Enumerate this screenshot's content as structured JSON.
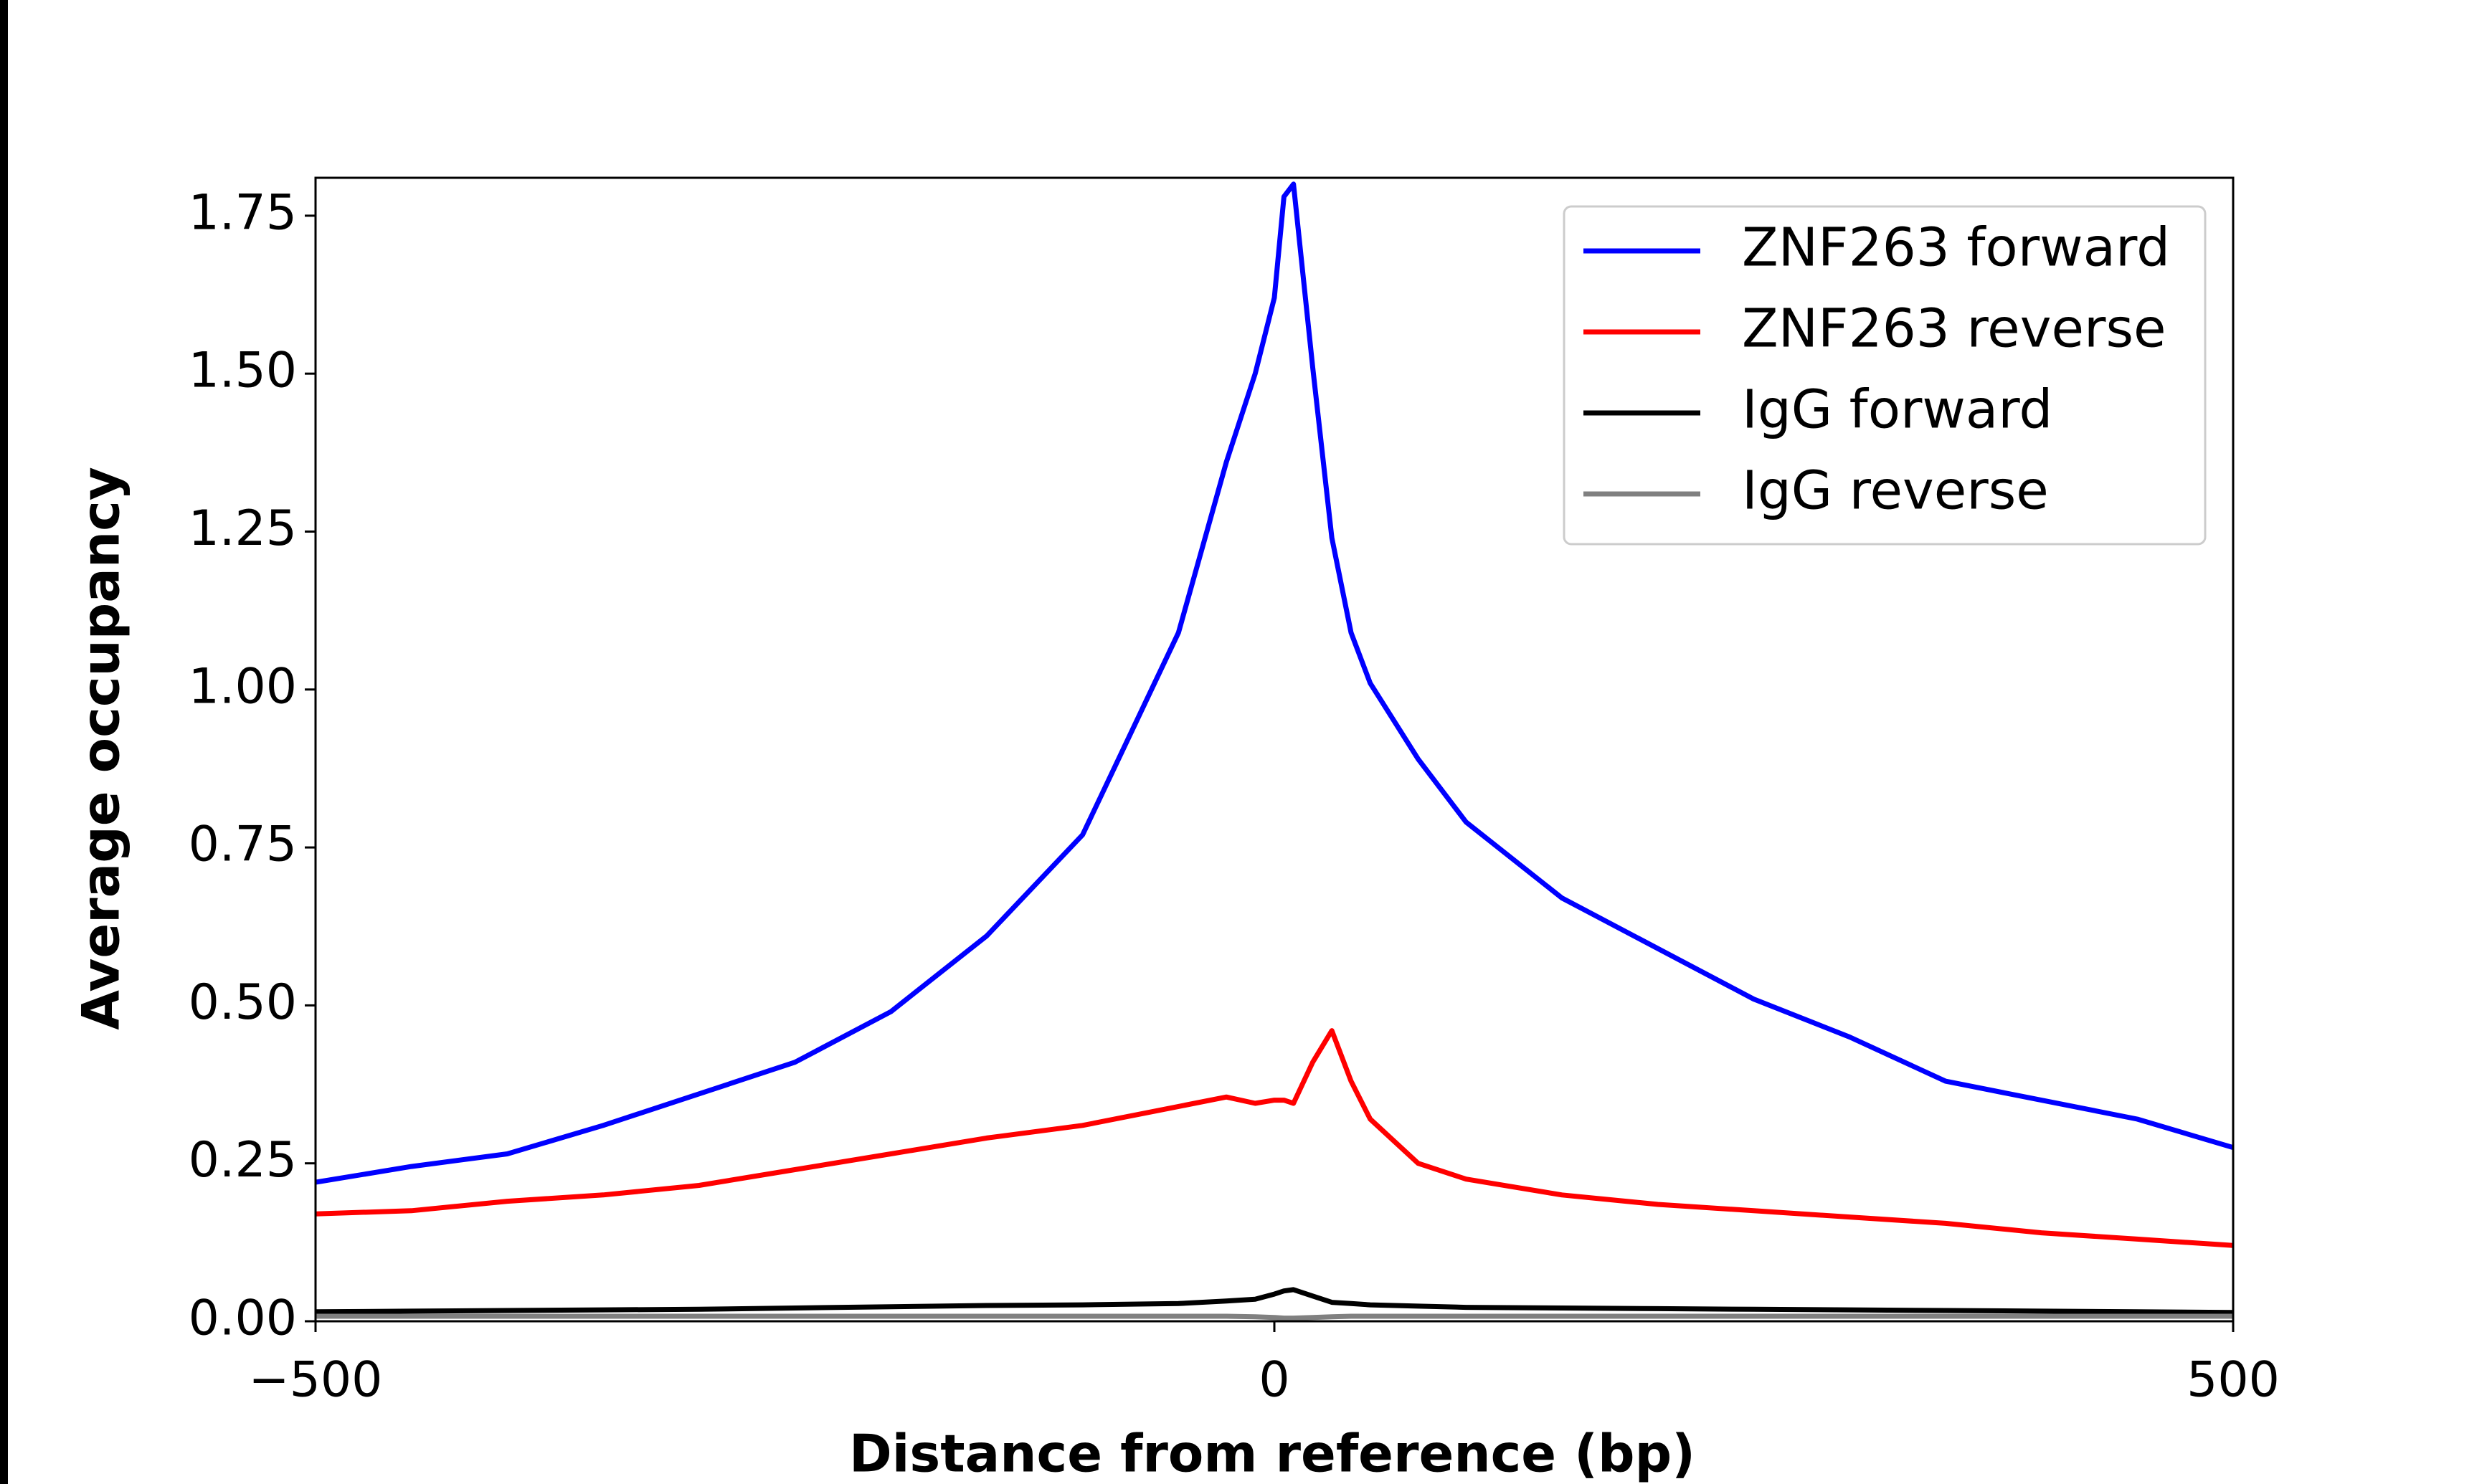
{
  "chart_data": {
    "type": "line",
    "xlabel": "Distance from reference (bp)",
    "ylabel": "Average occupancy",
    "x": [
      -500,
      -450,
      -400,
      -350,
      -300,
      -250,
      -200,
      -150,
      -100,
      -50,
      -25,
      -10,
      0,
      5,
      10,
      20,
      30,
      40,
      50,
      75,
      100,
      150,
      200,
      250,
      300,
      350,
      400,
      450,
      500
    ],
    "series": [
      {
        "name": "ZNF263 forward",
        "color": "#0000ff",
        "values": [
          0.22,
          0.245,
          0.265,
          0.31,
          0.36,
          0.41,
          0.49,
          0.61,
          0.77,
          1.09,
          1.36,
          1.5,
          1.62,
          1.78,
          1.8,
          1.51,
          1.24,
          1.09,
          1.01,
          0.89,
          0.79,
          0.67,
          0.59,
          0.51,
          0.45,
          0.38,
          0.35,
          0.32,
          0.275
        ]
      },
      {
        "name": "ZNF263 reverse",
        "color": "#ff0000",
        "values": [
          0.17,
          0.175,
          0.19,
          0.2,
          0.215,
          0.24,
          0.265,
          0.29,
          0.31,
          0.34,
          0.355,
          0.345,
          0.35,
          0.35,
          0.345,
          0.41,
          0.46,
          0.38,
          0.32,
          0.25,
          0.225,
          0.2,
          0.185,
          0.175,
          0.165,
          0.155,
          0.14,
          0.13,
          0.12
        ]
      },
      {
        "name": "IgG forward",
        "color": "#000000",
        "values": [
          0.015,
          0.016,
          0.017,
          0.018,
          0.019,
          0.021,
          0.023,
          0.025,
          0.026,
          0.028,
          0.032,
          0.035,
          0.043,
          0.048,
          0.05,
          0.04,
          0.03,
          0.028,
          0.026,
          0.024,
          0.022,
          0.021,
          0.02,
          0.019,
          0.018,
          0.017,
          0.016,
          0.015,
          0.014
        ]
      },
      {
        "name": "IgG reverse",
        "color": "#808080",
        "values": [
          0.008,
          0.008,
          0.008,
          0.008,
          0.008,
          0.008,
          0.008,
          0.008,
          0.008,
          0.008,
          0.008,
          0.007,
          0.006,
          0.005,
          0.005,
          0.006,
          0.007,
          0.008,
          0.008,
          0.008,
          0.008,
          0.008,
          0.008,
          0.008,
          0.008,
          0.008,
          0.008,
          0.008,
          0.008
        ]
      }
    ],
    "xlim": [
      -500,
      500
    ],
    "xticks": [
      {
        "value": -500,
        "label": "−500"
      },
      0,
      500
    ],
    "ylim": [
      0,
      1.81
    ],
    "yticks": [
      {
        "value": 0,
        "label": "0.00"
      },
      0.25,
      {
        "value": 0.5,
        "label": "0.50"
      },
      0.75,
      {
        "value": 1,
        "label": "1.00"
      },
      1.25,
      {
        "value": 1.5,
        "label": "1.50"
      },
      1.75
    ],
    "legend": "upper right",
    "grid": false
  }
}
